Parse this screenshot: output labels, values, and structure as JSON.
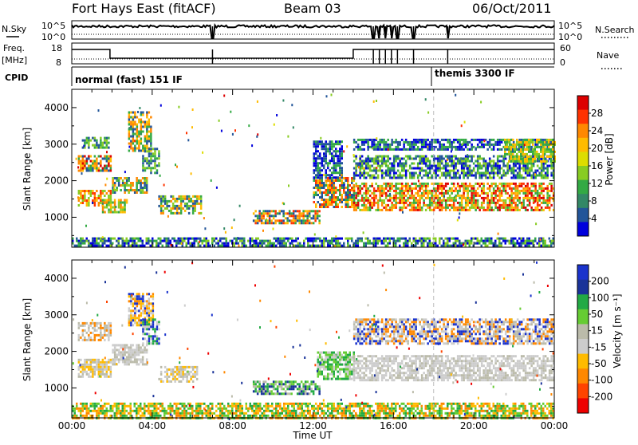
{
  "header": {
    "station": "Fort Hays East (fitACF)",
    "beam": "Beam 03",
    "date": "06/Oct/2011"
  },
  "status_panels": {
    "nsky_label": "N.Sky",
    "nsky_ticks": [
      "10^5",
      "10^0"
    ],
    "nsearch_label": "N.Search",
    "nsearch_ticks": [
      "10^5",
      "10^0"
    ],
    "freq_label_1": "Freq.",
    "freq_label_2": "[MHz]",
    "freq_ticks": [
      "18",
      "8"
    ],
    "nave_label": "Nave",
    "nave_ticks": [
      "60",
      "0"
    ],
    "cpid_label": "CPID",
    "cpid_segments": [
      {
        "text": "normal (fast) 151 IF",
        "start_hour": 0
      },
      {
        "text": "themis 3300 IF",
        "start_hour": 18
      }
    ],
    "gap_hours": [
      7.0,
      15.0,
      15.3,
      15.6,
      15.9,
      16.2,
      17.0,
      18.7
    ],
    "freq_step_hours": [
      1.9,
      14.0
    ]
  },
  "chart_data": [
    {
      "type": "heatmap",
      "ylabel": "Slant Range [km]",
      "yticks": [
        1000,
        2000,
        3000,
        4000
      ],
      "ylim": [
        180,
        4500
      ],
      "xlim": [
        0,
        24
      ],
      "colorbar": {
        "label": "Power [dB]",
        "ticks": [
          "28",
          "24",
          "20",
          "16",
          "12",
          "8",
          "4"
        ],
        "colors": [
          "#dd0000",
          "#ff3300",
          "#ff8800",
          "#ffbb00",
          "#dddd00",
          "#88cc22",
          "#33aa44",
          "#338866",
          "#225599",
          "#0000dd"
        ]
      },
      "bands": [
        {
          "x0": 0.3,
          "x1": 1.9,
          "y0": 1300,
          "y1": 1750,
          "c": [
            "#ff3300",
            "#ff8800",
            "#ffbb00",
            "#88cc22"
          ]
        },
        {
          "x0": 0.3,
          "x1": 1.9,
          "y0": 2300,
          "y1": 2700,
          "c": [
            "#dd0000",
            "#ff8800",
            "#ffbb00",
            "#33aa44",
            "#225599"
          ]
        },
        {
          "x0": 0.5,
          "x1": 1.8,
          "y0": 2900,
          "y1": 3200,
          "c": [
            "#33aa44",
            "#88cc22",
            "#225599"
          ]
        },
        {
          "x0": 1.5,
          "x1": 2.7,
          "y0": 1150,
          "y1": 1500,
          "c": [
            "#ff8800",
            "#ffbb00",
            "#88cc22",
            "#33aa44"
          ]
        },
        {
          "x0": 2.0,
          "x1": 3.7,
          "y0": 1650,
          "y1": 2100,
          "c": [
            "#33aa44",
            "#88cc22",
            "#ff8800",
            "#225599"
          ]
        },
        {
          "x0": 2.8,
          "x1": 3.9,
          "y0": 2800,
          "y1": 3900,
          "c": [
            "#ffbb00",
            "#33aa44",
            "#225599",
            "#ff8800"
          ]
        },
        {
          "x0": 3.5,
          "x1": 4.3,
          "y0": 2200,
          "y1": 2900,
          "c": [
            "#225599",
            "#33aa44",
            "#88cc22"
          ]
        },
        {
          "x0": 4.3,
          "x1": 6.4,
          "y0": 1100,
          "y1": 1600,
          "c": [
            "#ff8800",
            "#ffbb00",
            "#88cc22",
            "#33aa44",
            "#225599"
          ]
        },
        {
          "x0": 9.0,
          "x1": 12.3,
          "y0": 850,
          "y1": 1200,
          "c": [
            "#225599",
            "#33aa44",
            "#ff8800",
            "#ff3300",
            "#ffbb00"
          ]
        },
        {
          "x0": 12.0,
          "x1": 14.0,
          "y0": 1250,
          "y1": 2100,
          "c": [
            "#ff3300",
            "#ff8800",
            "#ffbb00",
            "#33aa44",
            "#225599"
          ]
        },
        {
          "x0": 12.0,
          "x1": 13.4,
          "y0": 2100,
          "y1": 3100,
          "c": [
            "#225599",
            "#33aa44",
            "#0000dd"
          ]
        },
        {
          "x0": 14.0,
          "x1": 24.0,
          "y0": 1200,
          "y1": 1950,
          "c": [
            "#dd0000",
            "#ff3300",
            "#ff8800",
            "#ffbb00",
            "#88cc22",
            "#33aa44"
          ]
        },
        {
          "x0": 14.0,
          "x1": 24.0,
          "y0": 2100,
          "y1": 2700,
          "c": [
            "#33aa44",
            "#225599",
            "#88cc22",
            "#0000dd"
          ]
        },
        {
          "x0": 14.0,
          "x1": 24.0,
          "y0": 2850,
          "y1": 3150,
          "c": [
            "#225599",
            "#33aa44",
            "#0000dd"
          ]
        },
        {
          "x0": 21.5,
          "x1": 24.0,
          "y0": 2500,
          "y1": 3150,
          "c": [
            "#ffbb00",
            "#88cc22",
            "#33aa44"
          ]
        },
        {
          "x0": 0.0,
          "x1": 24.0,
          "y0": 200,
          "y1": 450,
          "c": [
            "#225599",
            "#33aa44",
            "#88cc22",
            "#0000dd"
          ]
        }
      ]
    },
    {
      "type": "heatmap",
      "ylabel": "Slant Range [km]",
      "yticks": [
        1000,
        2000,
        3000,
        4000
      ],
      "ylim": [
        180,
        4500
      ],
      "xlim": [
        0,
        24
      ],
      "xticks": [
        "00:00",
        "04:00",
        "08:00",
        "12:00",
        "16:00",
        "20:00",
        "00:00"
      ],
      "xlabel": "Time UT",
      "colorbar": {
        "label": "Velocity [m s⁻¹]",
        "ticks": [
          "200",
          "100",
          "50",
          "15",
          "-15",
          "-50",
          "-100",
          "-200"
        ],
        "colors": [
          "#1a33cc",
          "#1a3399",
          "#22aa44",
          "#66cc33",
          "#bbbbaa",
          "#cccccc",
          "#ffbb00",
          "#ff8800",
          "#ff4400",
          "#ee0000"
        ]
      },
      "bands": [
        {
          "x0": 0.3,
          "x1": 1.9,
          "y0": 1300,
          "y1": 1800,
          "c": [
            "#cccccc",
            "#bbbbaa",
            "#ffbb00"
          ]
        },
        {
          "x0": 0.3,
          "x1": 1.9,
          "y0": 2300,
          "y1": 2800,
          "c": [
            "#cccccc",
            "#bbbbaa",
            "#ff8800"
          ]
        },
        {
          "x0": 2.0,
          "x1": 3.7,
          "y0": 1650,
          "y1": 2200,
          "c": [
            "#cccccc",
            "#bbbbaa"
          ]
        },
        {
          "x0": 2.8,
          "x1": 4.0,
          "y0": 2700,
          "y1": 3600,
          "c": [
            "#ffbb00",
            "#ff8800",
            "#cccccc",
            "#1a33cc"
          ]
        },
        {
          "x0": 3.5,
          "x1": 4.3,
          "y0": 2200,
          "y1": 2900,
          "c": [
            "#1a33cc",
            "#22aa44",
            "#cccccc"
          ]
        },
        {
          "x0": 4.3,
          "x1": 6.2,
          "y0": 1200,
          "y1": 1600,
          "c": [
            "#cccccc",
            "#ffbb00",
            "#bbbbaa"
          ]
        },
        {
          "x0": 9.0,
          "x1": 12.3,
          "y0": 850,
          "y1": 1200,
          "c": [
            "#22aa44",
            "#66cc33",
            "#1a3399",
            "#bbbbaa"
          ]
        },
        {
          "x0": 12.2,
          "x1": 14.0,
          "y0": 1250,
          "y1": 2000,
          "c": [
            "#66cc33",
            "#cccccc",
            "#22aa44"
          ]
        },
        {
          "x0": 14.0,
          "x1": 24.0,
          "y0": 1200,
          "y1": 1900,
          "c": [
            "#cccccc",
            "#bbbbaa",
            "#cccccc"
          ]
        },
        {
          "x0": 14.0,
          "x1": 24.0,
          "y0": 2200,
          "y1": 2900,
          "c": [
            "#cccccc",
            "#bbbbaa",
            "#ff8800",
            "#1a33cc"
          ]
        },
        {
          "x0": 0.0,
          "x1": 24.0,
          "y0": 200,
          "y1": 600,
          "c": [
            "#ffbb00",
            "#22aa44",
            "#66cc33",
            "#ff8800"
          ]
        }
      ]
    }
  ]
}
